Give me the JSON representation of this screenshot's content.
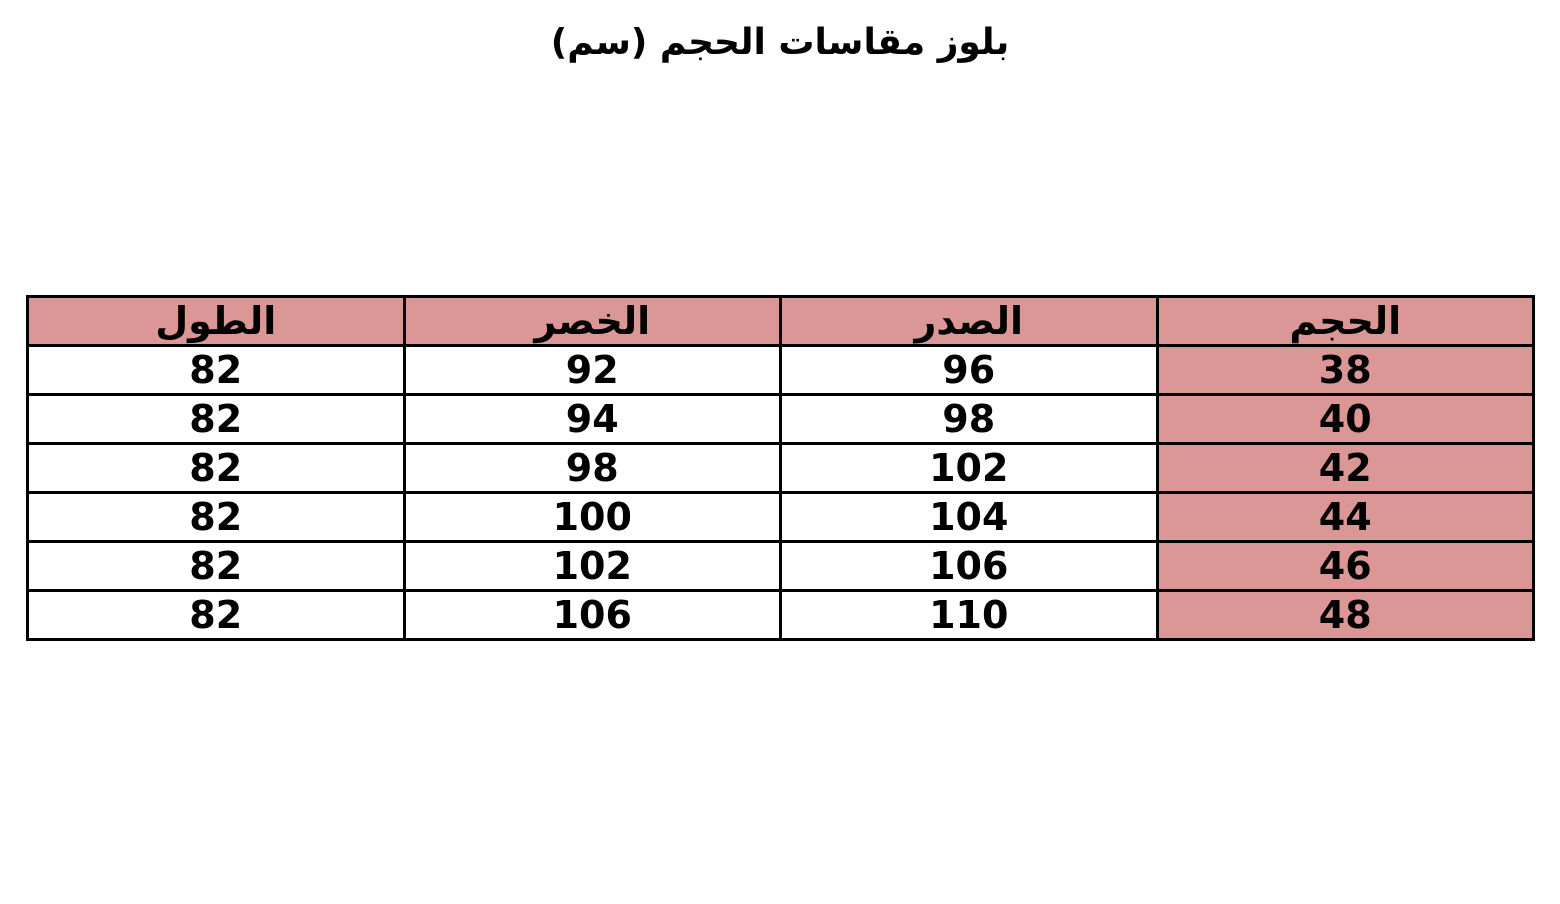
{
  "title": "بلوز مقاسات الحجم (سم)",
  "colors": {
    "highlight": "#db9795",
    "border": "#000000"
  },
  "table": {
    "headers": [
      "الحجم",
      "الصدر",
      "الخصر",
      "الطول"
    ],
    "rows": [
      [
        "38",
        "96",
        "92",
        "82"
      ],
      [
        "40",
        "98",
        "94",
        "82"
      ],
      [
        "42",
        "102",
        "98",
        "82"
      ],
      [
        "44",
        "104",
        "100",
        "82"
      ],
      [
        "46",
        "106",
        "102",
        "82"
      ],
      [
        "48",
        "110",
        "106",
        "82"
      ]
    ]
  }
}
